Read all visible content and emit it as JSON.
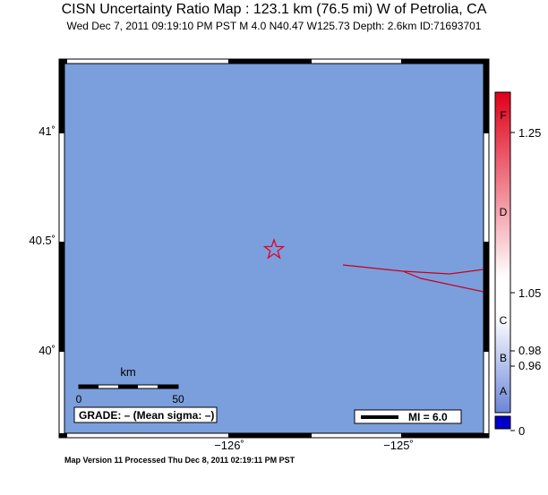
{
  "title": "CISN Uncertainty Ratio Map : 123.1 km (76.5 mi) W of Petrolia, CA",
  "subtitle": "Wed Dec  7, 2011 09:19:10 PM PST    M 4.0    N40.47 W125.73    Depth: 2.6km    ID:71693701",
  "footer": "Map Version 11 Processed Thu Dec  8, 2011 02:19:11 PM PST",
  "map": {
    "background_color": "#7b9fdc",
    "epicenter": {
      "lat": 40.47,
      "lon": -125.73,
      "symbol": "star-icon",
      "color": "#e0002a"
    },
    "fault_color": "#c8001c",
    "lat_ticks": [
      {
        "value": 41.0,
        "label": "41˚"
      },
      {
        "value": 40.5,
        "label": "40.5˚"
      },
      {
        "value": 40.0,
        "label": "40˚"
      }
    ],
    "lon_ticks": [
      {
        "value": -126.0,
        "label": "−126˚"
      },
      {
        "value": -125.0,
        "label": "−125˚"
      }
    ],
    "scale_bar": {
      "unit": "km",
      "start_label": "0",
      "end_label": "50"
    },
    "grade_box": "GRADE: – (Mean sigma: –)",
    "mi_legend": "MI = 6.0"
  },
  "colorbar": {
    "letters": [
      "F",
      "D",
      "C",
      "B",
      "A"
    ],
    "values": [
      "1.25",
      "1.05",
      "0.98",
      "0.96",
      "0"
    ],
    "top_color": "#e0001a",
    "mid_color": "#ffffff",
    "low_color": "#6b86d8",
    "bottom_swatch": "#0000c8"
  }
}
